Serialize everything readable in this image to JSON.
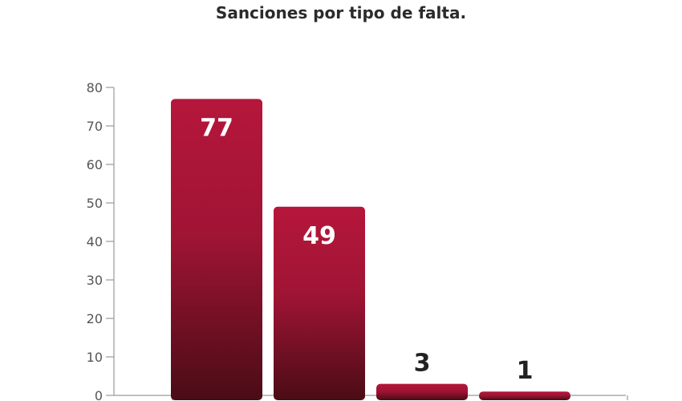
{
  "chart_data": {
    "type": "bar",
    "title": "Sanciones por tipo de falta.",
    "categories": [
      "",
      "",
      "",
      ""
    ],
    "values": [
      77,
      49,
      3,
      1
    ],
    "value_labels": [
      "77",
      "49",
      "3",
      "1"
    ],
    "yticks": [
      "0",
      "10",
      "20",
      "30",
      "40",
      "50",
      "60",
      "70",
      "80"
    ],
    "ylim": [
      0,
      80
    ],
    "grid": false,
    "colors": {
      "bar_top": "#b5173b",
      "bar_bottom": "#4a0c16",
      "axis": "#999999",
      "label_on_bar": "#ffffff",
      "label_above_bar": "#222222"
    }
  }
}
